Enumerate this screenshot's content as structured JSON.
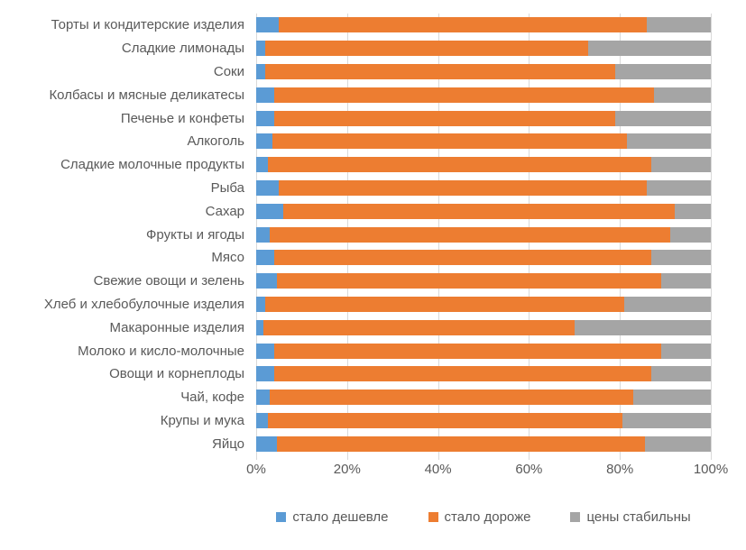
{
  "chart_data": {
    "type": "bar",
    "orientation": "horizontal",
    "stacked": true,
    "grid": true,
    "legend_position": "bottom",
    "xlim": [
      0,
      100
    ],
    "x_ticks": [
      {
        "value": 0,
        "label": "0%"
      },
      {
        "value": 20,
        "label": "20%"
      },
      {
        "value": 40,
        "label": "40%"
      },
      {
        "value": 60,
        "label": "60%"
      },
      {
        "value": 80,
        "label": "80%"
      },
      {
        "value": 100,
        "label": "100%"
      }
    ],
    "categories": [
      "Торты и кондитерские изделия",
      "Сладкие лимонады",
      "Соки",
      "Колбасы и мясные деликатесы",
      "Печенье и конфеты",
      "Алкоголь",
      "Сладкие молочные продукты",
      "Рыба",
      "Сахар",
      "Фрукты и ягоды",
      "Мясо",
      "Свежие овощи и зелень",
      "Хлеб и хлебобулочные изделия",
      "Макаронные изделия",
      "Молоко и кисло-молочные",
      "Овощи и корнеплоды",
      "Чай, кофе",
      "Крупы и мука",
      "Яйцо"
    ],
    "series": [
      {
        "key": "cheaper",
        "name": "стало дешевле",
        "color": "#5B9BD5",
        "values": [
          5,
          2,
          2,
          4,
          4,
          3.5,
          2.5,
          5,
          6,
          3,
          4,
          4.5,
          2,
          1.5,
          4,
          4,
          3,
          2.5,
          4.5
        ]
      },
      {
        "key": "more-expensive",
        "name": "стало дороже",
        "color": "#ED7D31",
        "values": [
          81,
          71,
          77,
          83.5,
          75,
          78,
          84.5,
          81,
          86,
          88,
          83,
          84.5,
          79,
          68.5,
          85,
          83,
          80,
          78,
          81
        ]
      },
      {
        "key": "stable",
        "name": "цены стабильны",
        "color": "#A5A5A5",
        "values": [
          14,
          27,
          21,
          12.5,
          21,
          18.5,
          13,
          14,
          8,
          9,
          13,
          11,
          19,
          30,
          11,
          13,
          17,
          19.5,
          14.5
        ]
      }
    ]
  },
  "colors": {
    "gridline": "#d9d9d9",
    "text": "#595959",
    "background": "#ffffff"
  }
}
